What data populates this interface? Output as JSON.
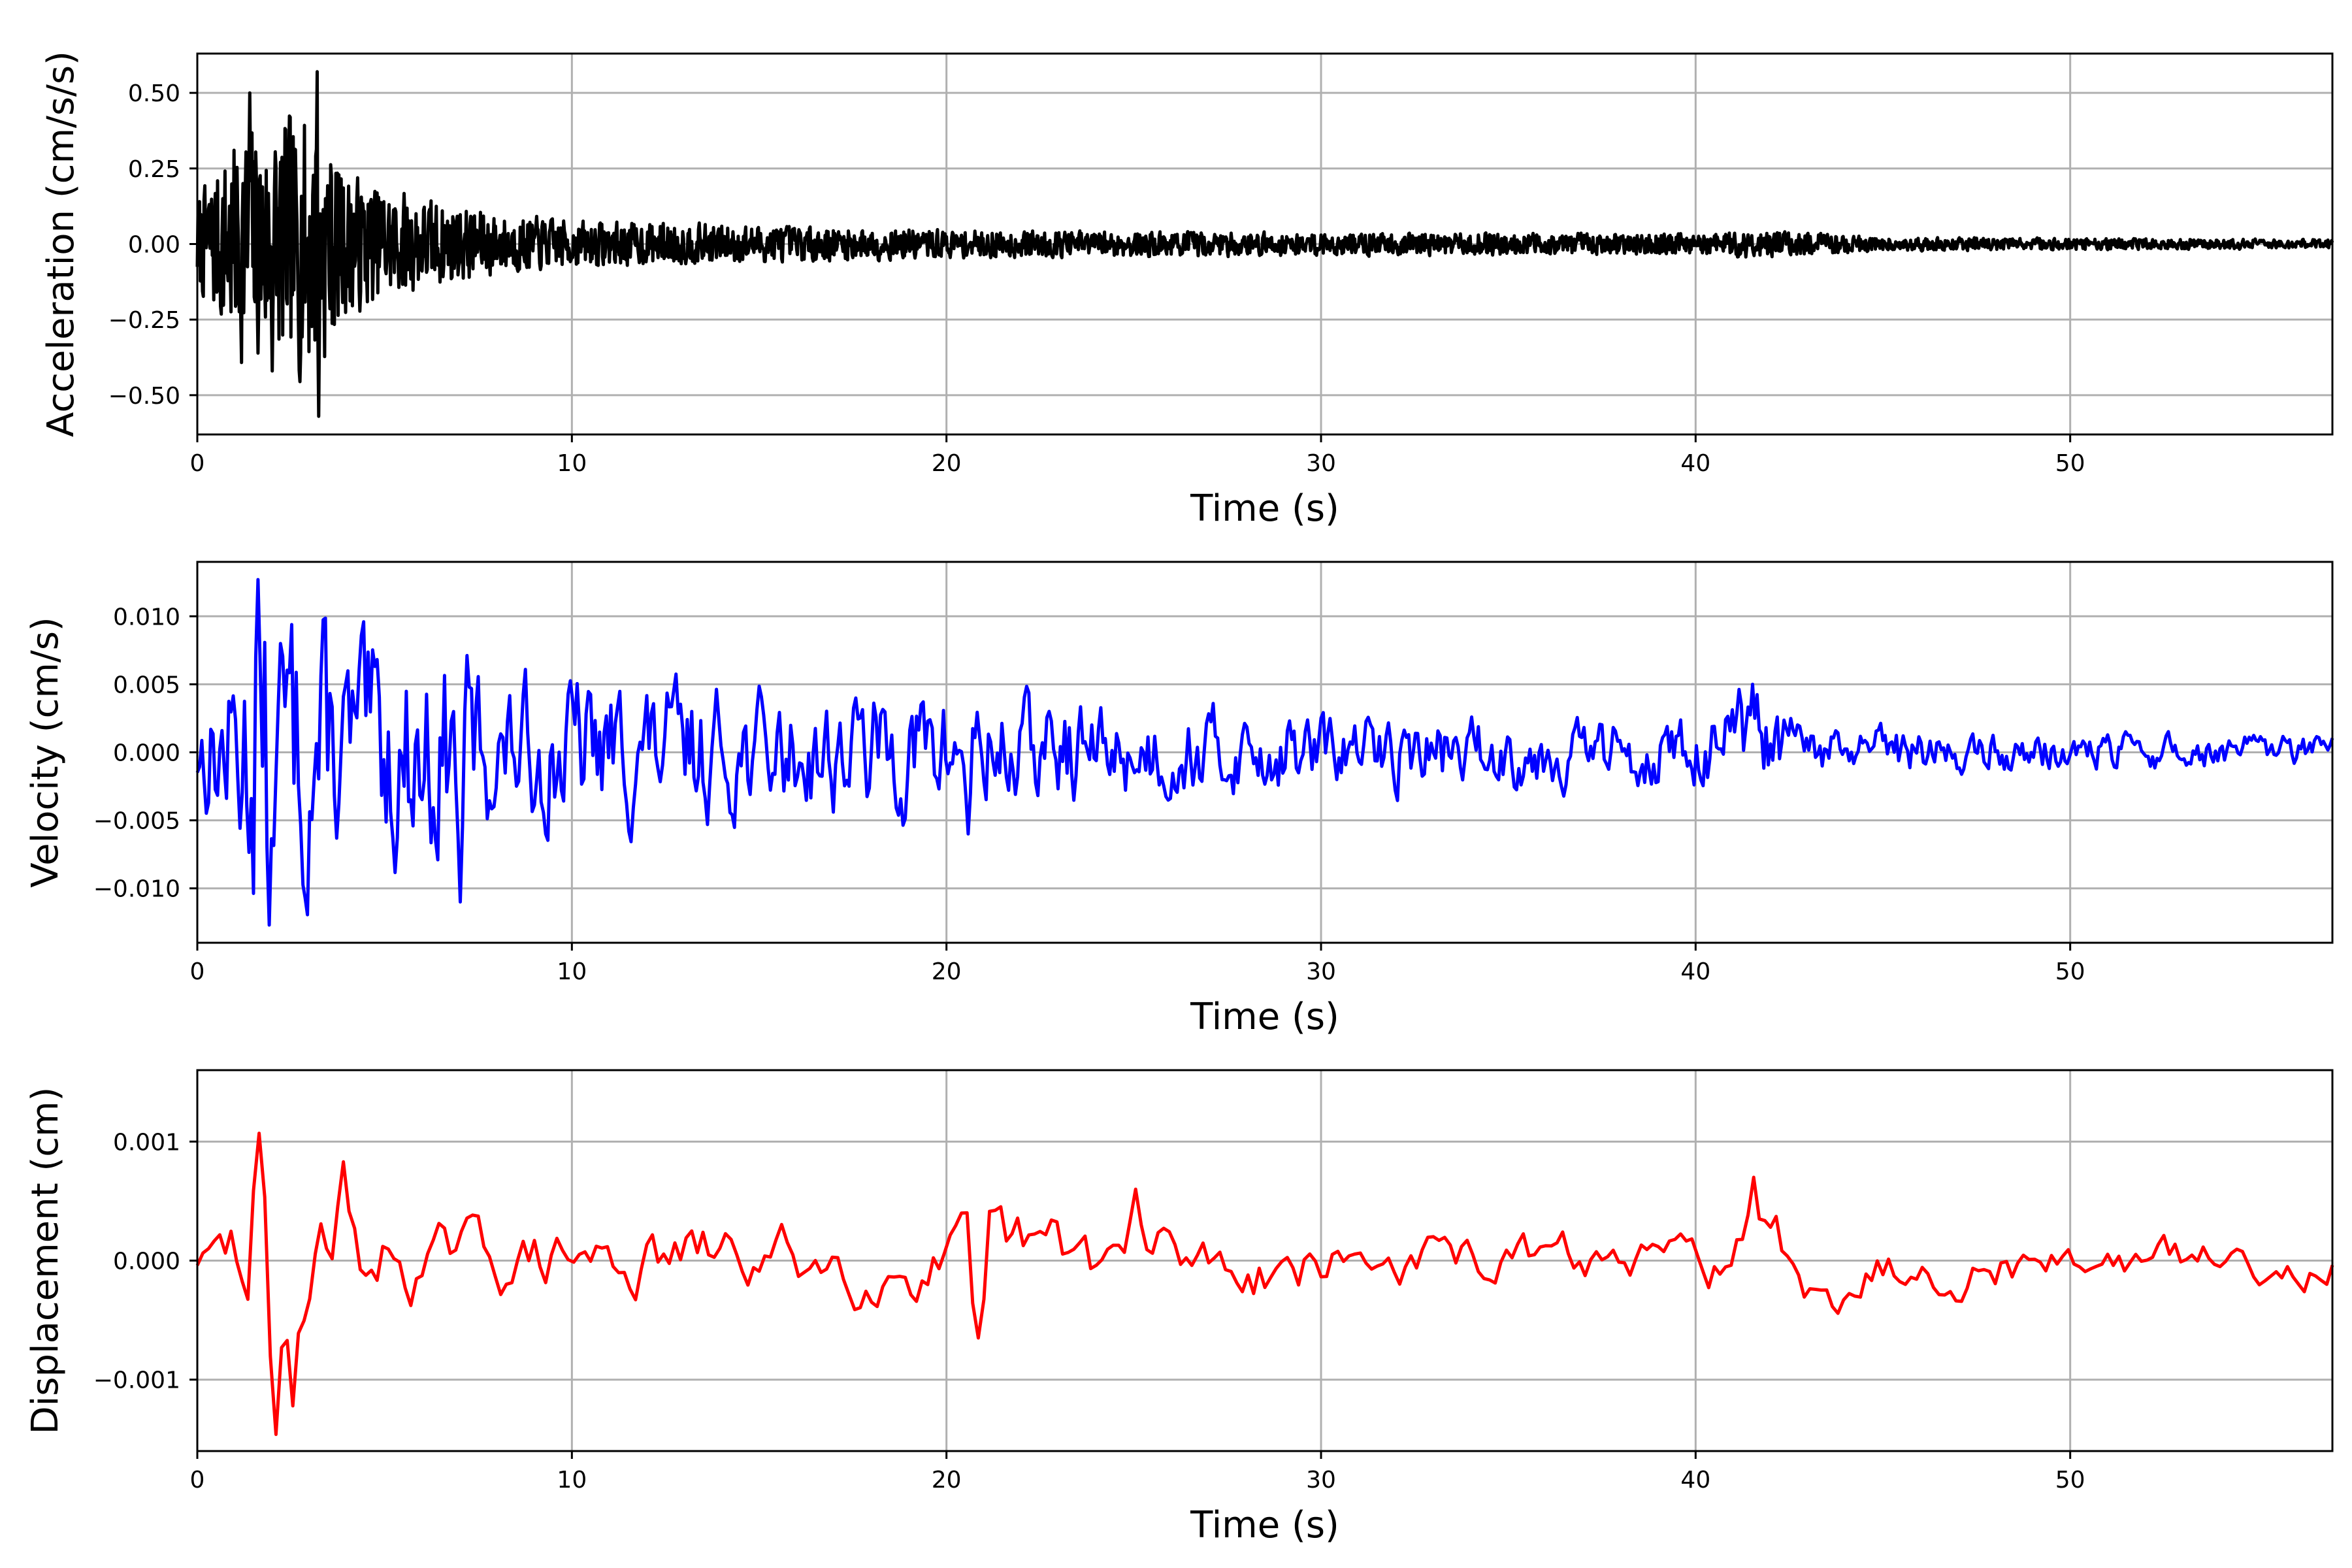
{
  "chart_data": [
    {
      "type": "line",
      "xlabel": "Time (s)",
      "ylabel": "Acceleration (cm/s/s)",
      "xlim": [
        0,
        57
      ],
      "ylim": [
        -0.63,
        0.63
      ],
      "xticks": [
        0,
        10,
        20,
        30,
        40,
        50
      ],
      "xtick_labels": [
        "0",
        "10",
        "20",
        "30",
        "40",
        "50"
      ],
      "yticks": [
        0.5,
        0.25,
        0,
        -0.25,
        -0.5
      ],
      "ytick_labels": [
        "0.50",
        "0.25",
        "0.00",
        "−0.25",
        "−0.50"
      ],
      "grid": true,
      "series": [
        {
          "color": "#000000",
          "envelope": [
            [
              0,
              0.2
            ],
            [
              1.2,
              0.5
            ],
            [
              3.2,
              0.57
            ],
            [
              4,
              0.3
            ],
            [
              6,
              0.2
            ],
            [
              8,
              0.13
            ],
            [
              10,
              0.1
            ],
            [
              15,
              0.08
            ],
            [
              20,
              0.06
            ],
            [
              30,
              0.05
            ],
            [
              40,
              0.045
            ],
            [
              41.5,
              0.06
            ],
            [
              45,
              0.03
            ],
            [
              50,
              0.025
            ],
            [
              57,
              0.02
            ]
          ],
          "dt": 0.02,
          "seed": 7,
          "peaks": [
            [
              3.2,
              0.57
            ],
            [
              3.25,
              -0.57
            ],
            [
              1.4,
              0.5
            ],
            [
              2.0,
              -0.42
            ]
          ]
        }
      ]
    },
    {
      "type": "line",
      "xlabel": "Time (s)",
      "ylabel": "Velocity (cm/s)",
      "xlim": [
        0,
        57
      ],
      "ylim": [
        -0.014,
        0.014
      ],
      "xticks": [
        0,
        10,
        20,
        30,
        40,
        50
      ],
      "xtick_labels": [
        "0",
        "10",
        "20",
        "30",
        "40",
        "50"
      ],
      "yticks": [
        0.01,
        0.005,
        0,
        -0.005,
        -0.01
      ],
      "ytick_labels": [
        "0.010",
        "0.005",
        "0.000",
        "−0.005",
        "−0.010"
      ],
      "grid": true,
      "series": [
        {
          "color": "#0000ff",
          "envelope": [
            [
              0,
              0.004
            ],
            [
              1.2,
              0.01
            ],
            [
              1.6,
              0.0127
            ],
            [
              3,
              0.011
            ],
            [
              4,
              0.008
            ],
            [
              7,
              0.009
            ],
            [
              8,
              0.005
            ],
            [
              10,
              0.006
            ],
            [
              15,
              0.0045
            ],
            [
              20,
              0.005
            ],
            [
              25,
              0.0035
            ],
            [
              30,
              0.003
            ],
            [
              40,
              0.0025
            ],
            [
              41.5,
              0.005
            ],
            [
              43,
              0.002
            ],
            [
              50,
              0.0015
            ],
            [
              57,
              0.0012
            ]
          ],
          "dt": 0.06,
          "seed": 13,
          "peaks": [
            [
              1.6,
              0.0127
            ],
            [
              1.95,
              -0.0127
            ],
            [
              7.0,
              -0.011
            ],
            [
              20.6,
              -0.006
            ],
            [
              41.5,
              0.005
            ]
          ]
        }
      ]
    },
    {
      "type": "line",
      "xlabel": "Time (s)",
      "ylabel": "Displacement (cm)",
      "xlim": [
        0,
        57
      ],
      "ylim": [
        -0.0016,
        0.0016
      ],
      "xticks": [
        0,
        10,
        20,
        30,
        40,
        50
      ],
      "xtick_labels": [
        "0",
        "10",
        "20",
        "30",
        "40",
        "50"
      ],
      "yticks": [
        0.001,
        0,
        -0.001
      ],
      "ytick_labels": [
        "0.001",
        "0.000",
        "−0.001"
      ],
      "grid": true,
      "series": [
        {
          "color": "#ff0000",
          "envelope": [
            [
              0,
              0.0002
            ],
            [
              1.2,
              0.0009
            ],
            [
              1.6,
              0.00105
            ],
            [
              2.1,
              0.00145
            ],
            [
              2.5,
              0.0012
            ],
            [
              4,
              0.0008
            ],
            [
              6,
              0.0005
            ],
            [
              10,
              0.0005
            ],
            [
              15,
              0.0005
            ],
            [
              20,
              0.0005
            ],
            [
              25,
              0.0006
            ],
            [
              30,
              0.0004
            ],
            [
              40,
              0.0003
            ],
            [
              41.5,
              0.0007
            ],
            [
              45,
              0.0004
            ],
            [
              50,
              0.0003
            ],
            [
              57,
              0.0003
            ]
          ],
          "dt": 0.15,
          "seed": 29,
          "peaks": [
            [
              1.6,
              0.00107
            ],
            [
              2.1,
              -0.00146
            ],
            [
              2.5,
              -0.00122
            ],
            [
              3.9,
              0.00083
            ],
            [
              20.9,
              -0.00065
            ],
            [
              25,
              0.0006
            ],
            [
              41.5,
              0.0007
            ]
          ]
        }
      ]
    }
  ]
}
